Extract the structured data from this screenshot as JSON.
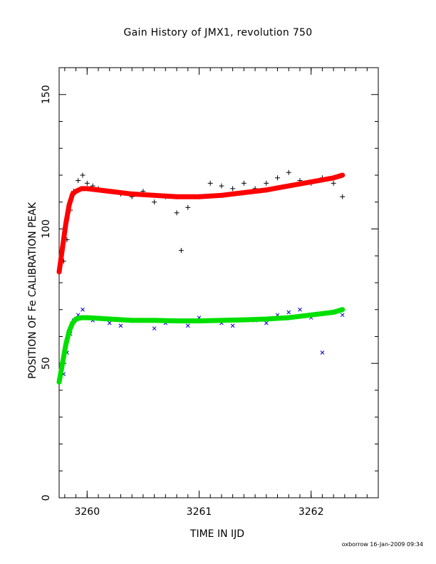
{
  "chart_data": {
    "type": "scatter",
    "title": "Gain History of JMX1, revolution 750",
    "xlabel": "TIME IN IJD",
    "ylabel": "POSITION OF Fe CALIBRATION PEAK",
    "xlim": [
      3259.75,
      3262.6
    ],
    "ylim": [
      0,
      160
    ],
    "x_ticks": [
      3260,
      3261,
      3262
    ],
    "x_tick_labels": [
      "3260",
      "3261",
      "3262"
    ],
    "y_ticks": [
      0,
      50,
      100,
      150
    ],
    "y_tick_labels": [
      "0",
      "50",
      "100",
      "150"
    ],
    "grid": false,
    "legend": "none",
    "series": [
      {
        "marker": "plus",
        "color": "#000000",
        "x": [
          3259.79,
          3259.82,
          3259.85,
          3259.88,
          3259.92,
          3259.96,
          3260.0,
          3260.05,
          3260.1,
          3260.2,
          3260.3,
          3260.4,
          3260.5,
          3260.6,
          3260.7,
          3260.8,
          3260.84,
          3260.9,
          3261.0,
          3261.1,
          3261.2,
          3261.3,
          3261.4,
          3261.5,
          3261.6,
          3261.7,
          3261.8,
          3261.9,
          3262.0,
          3262.1,
          3262.2,
          3262.28
        ],
        "y": [
          88,
          96,
          107,
          114,
          118,
          120,
          117,
          116,
          115,
          114,
          113,
          112,
          114,
          110,
          112,
          106,
          92,
          108,
          112,
          117,
          116,
          115,
          117,
          115,
          117,
          119,
          121,
          118,
          117,
          119,
          117,
          112
        ]
      },
      {
        "marker": "cross",
        "color": "#0000cc",
        "x": [
          3259.79,
          3259.82,
          3259.85,
          3259.88,
          3259.92,
          3259.96,
          3260.0,
          3260.05,
          3260.1,
          3260.2,
          3260.3,
          3260.4,
          3260.5,
          3260.6,
          3260.7,
          3260.8,
          3260.9,
          3261.0,
          3261.1,
          3261.2,
          3261.3,
          3261.4,
          3261.5,
          3261.6,
          3261.7,
          3261.8,
          3261.9,
          3262.0,
          3262.1,
          3262.2,
          3262.28
        ],
        "y": [
          46,
          54,
          61,
          66,
          68,
          70,
          67,
          66,
          67,
          65,
          64,
          66,
          66,
          63,
          65,
          66,
          64,
          67,
          66,
          65,
          64,
          66,
          66,
          65,
          68,
          69,
          70,
          67,
          54,
          69,
          68
        ]
      }
    ],
    "fits": [
      {
        "color": "#ff0000",
        "marker": "plus",
        "x": [
          3259.75,
          3259.78,
          3259.81,
          3259.84,
          3259.87,
          3259.9,
          3259.95,
          3260.0,
          3260.2,
          3260.4,
          3260.6,
          3260.8,
          3261.0,
          3261.2,
          3261.4,
          3261.6,
          3261.8,
          3262.0,
          3262.2,
          3262.28
        ],
        "y": [
          84,
          93,
          102,
          109,
          113,
          114,
          115,
          115,
          114,
          113,
          112.5,
          112,
          112,
          112.5,
          113.5,
          114.5,
          116,
          117.5,
          119,
          120
        ]
      },
      {
        "color": "#00e000",
        "marker": "plus",
        "x": [
          3259.75,
          3259.78,
          3259.81,
          3259.84,
          3259.87,
          3259.9,
          3259.95,
          3260.0,
          3260.2,
          3260.4,
          3260.6,
          3260.8,
          3261.0,
          3261.2,
          3261.4,
          3261.6,
          3261.8,
          3262.0,
          3262.2,
          3262.28
        ],
        "y": [
          43,
          50,
          57,
          62,
          65,
          66.5,
          67,
          67,
          66.5,
          66,
          66,
          65.8,
          65.8,
          66,
          66.2,
          66.5,
          67,
          68,
          69,
          70
        ]
      }
    ],
    "footer": "oxborrow 16-Jan-2009 09:34"
  }
}
